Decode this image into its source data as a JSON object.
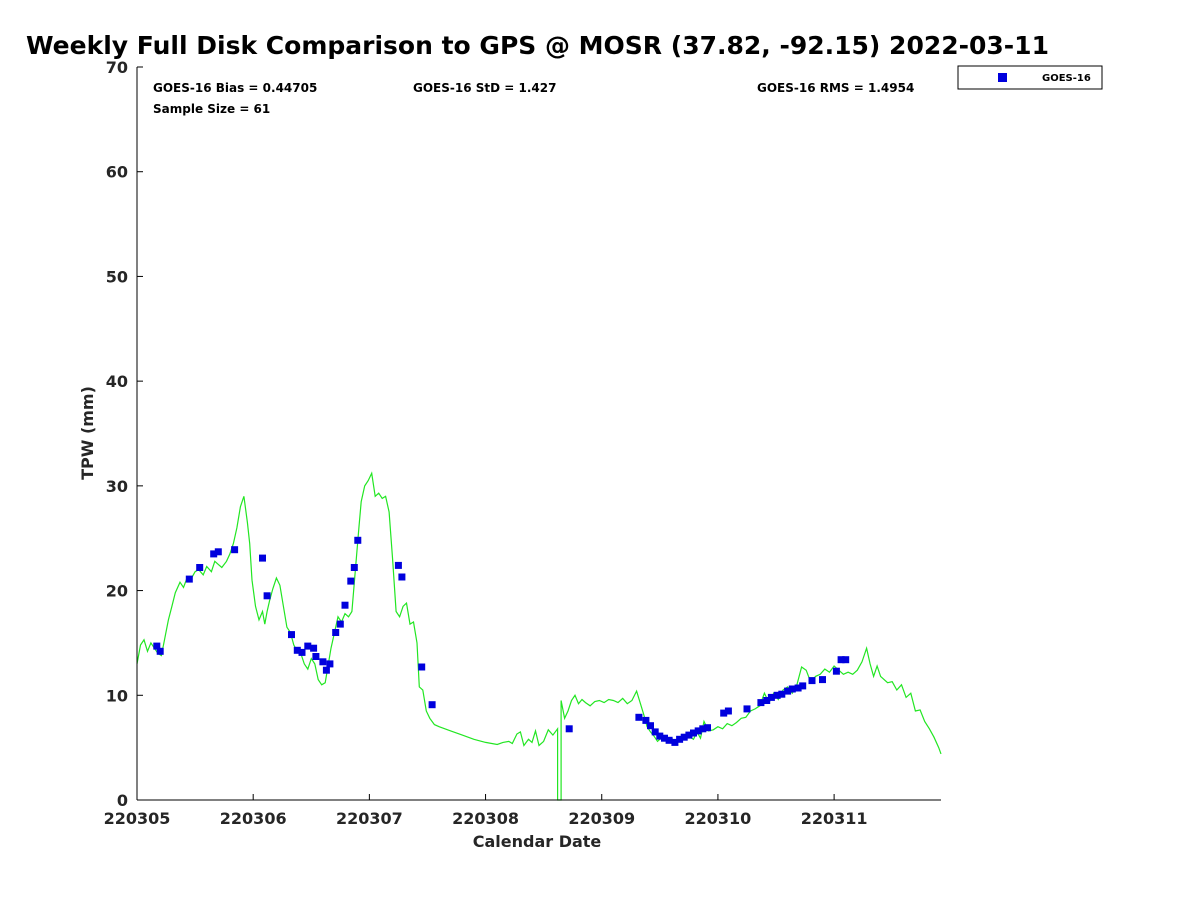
{
  "chart_data": {
    "type": "line",
    "title": "Weekly Full Disk Comparison to GPS @ MOSR (37.82, -92.15) 2022-03-11",
    "xlabel": "Calendar Date",
    "ylabel": "TPW (mm)",
    "xlim": [
      220305,
      220311.92
    ],
    "ylim": [
      0,
      70
    ],
    "x_ticks": [
      {
        "value": 220305,
        "label": "220305"
      },
      {
        "value": 220306,
        "label": "220306"
      },
      {
        "value": 220307,
        "label": "220307"
      },
      {
        "value": 220308,
        "label": "220308"
      },
      {
        "value": 220309,
        "label": "220309"
      },
      {
        "value": 220310,
        "label": "220310"
      },
      {
        "value": 220311,
        "label": "220311"
      }
    ],
    "y_ticks": [
      {
        "value": 0,
        "label": "0"
      },
      {
        "value": 10,
        "label": "10"
      },
      {
        "value": 20,
        "label": "20"
      },
      {
        "value": 30,
        "label": "30"
      },
      {
        "value": 40,
        "label": "40"
      },
      {
        "value": 50,
        "label": "50"
      },
      {
        "value": 60,
        "label": "60"
      },
      {
        "value": 70,
        "label": "70"
      }
    ],
    "grid": false,
    "legend_position": "outside-top-right",
    "stats": {
      "bias": "GOES-16 Bias = 0.44705",
      "std": "GOES-16 StD = 1.427",
      "rms": "GOES-16 RMS = 1.4954",
      "sample": "Sample Size = 61"
    },
    "series": [
      {
        "kind": "line",
        "color": "#22e622",
        "x": [
          220305.0,
          220305.03,
          220305.06,
          220305.09,
          220305.12,
          220305.15,
          220305.18,
          220305.21,
          220305.24,
          220305.27,
          220305.3,
          220305.33,
          220305.37,
          220305.4,
          220305.43,
          220305.46,
          220305.5,
          220305.53,
          220305.57,
          220305.6,
          220305.64,
          220305.67,
          220305.7,
          220305.73,
          220305.77,
          220305.8,
          220305.83,
          220305.86,
          220305.89,
          220305.92,
          220305.95,
          220305.97,
          220305.99,
          220306.02,
          220306.05,
          220306.08,
          220306.1,
          220306.12,
          220306.14,
          220306.17,
          220306.2,
          220306.23,
          220306.26,
          220306.29,
          220306.32,
          220306.35,
          220306.38,
          220306.41,
          220306.44,
          220306.47,
          220306.5,
          220306.53,
          220306.56,
          220306.59,
          220306.62,
          220306.64,
          220306.67,
          220306.7,
          220306.73,
          220306.76,
          220306.79,
          220306.82,
          220306.85,
          220306.88,
          220306.91,
          220306.93,
          220306.96,
          220306.99,
          220307.02,
          220307.05,
          220307.08,
          220307.11,
          220307.14,
          220307.17,
          220307.2,
          220307.23,
          220307.26,
          220307.29,
          220307.32,
          220307.35,
          220307.38,
          220307.41,
          220307.43,
          220307.46,
          220307.49,
          220307.52,
          220307.56,
          220307.6,
          220307.7,
          220307.8,
          220307.9,
          220308.0,
          220308.1,
          220308.15,
          220308.2,
          220308.23,
          220308.27,
          220308.3,
          220308.33,
          220308.37,
          220308.4,
          220308.43,
          220308.46,
          220308.5,
          220308.54,
          220308.58,
          220308.62,
          220308.62,
          220308.65,
          220308.65,
          220308.68,
          220308.71,
          220308.74,
          220308.77,
          220308.8,
          220308.83,
          220308.86,
          220308.9,
          220308.94,
          220308.98,
          220309.02,
          220309.06,
          220309.1,
          220309.14,
          220309.18,
          220309.22,
          220309.26,
          220309.3,
          220309.33,
          220309.36,
          220309.39,
          220309.42,
          220309.45,
          220309.48,
          220309.52,
          220309.56,
          220309.6,
          220309.64,
          220309.67,
          220309.7,
          220309.73,
          220309.76,
          220309.79,
          220309.82,
          220309.85,
          220309.88,
          220309.92,
          220309.96,
          220310.0,
          220310.04,
          220310.08,
          220310.12,
          220310.16,
          220310.2,
          220310.24,
          220310.28,
          220310.32,
          220310.36,
          220310.4,
          220310.44,
          220310.48,
          220310.52,
          220310.56,
          220310.6,
          220310.64,
          220310.68,
          220310.72,
          220310.76,
          220310.8,
          220310.84,
          220310.88,
          220310.92,
          220310.96,
          220311.0,
          220311.04,
          220311.08,
          220311.12,
          220311.16,
          220311.2,
          220311.24,
          220311.28,
          220311.31,
          220311.34,
          220311.37,
          220311.4,
          220311.43,
          220311.46,
          220311.5,
          220311.54,
          220311.58,
          220311.62,
          220311.66,
          220311.7,
          220311.74,
          220311.78,
          220311.82,
          220311.86,
          220311.9,
          220311.92
        ],
        "y": [
          13.0,
          14.8,
          15.3,
          14.2,
          15.0,
          14.5,
          14.0,
          13.8,
          15.5,
          17.2,
          18.5,
          19.8,
          20.8,
          20.3,
          21.2,
          21.0,
          21.8,
          22.0,
          21.5,
          22.3,
          21.8,
          22.8,
          22.5,
          22.2,
          22.8,
          23.5,
          24.5,
          26.0,
          28.0,
          29.0,
          26.5,
          24.5,
          21.0,
          18.5,
          17.2,
          18.0,
          16.8,
          18.0,
          19.0,
          20.2,
          21.2,
          20.5,
          18.5,
          16.5,
          16.0,
          14.8,
          14.2,
          14.0,
          13.0,
          12.5,
          13.5,
          13.0,
          11.5,
          11.0,
          11.2,
          12.5,
          14.5,
          16.0,
          17.5,
          17.0,
          17.8,
          17.5,
          18.0,
          22.0,
          26.0,
          28.5,
          30.0,
          30.5,
          31.2,
          29.0,
          29.3,
          28.8,
          29.0,
          27.5,
          23.0,
          18.0,
          17.5,
          18.5,
          18.8,
          16.8,
          17.0,
          15.0,
          10.8,
          10.5,
          8.5,
          7.8,
          7.2,
          7.0,
          6.6,
          6.2,
          5.8,
          5.5,
          5.3,
          5.5,
          5.6,
          5.4,
          6.3,
          6.5,
          5.2,
          5.8,
          5.5,
          6.6,
          5.2,
          5.6,
          6.7,
          6.2,
          6.8,
          0.0,
          0.0,
          9.5,
          7.8,
          8.5,
          9.5,
          10.0,
          9.2,
          9.6,
          9.3,
          9.0,
          9.4,
          9.5,
          9.3,
          9.6,
          9.5,
          9.3,
          9.7,
          9.2,
          9.5,
          10.4,
          9.3,
          8.2,
          7.0,
          6.5,
          6.1,
          5.6,
          6.0,
          5.7,
          5.9,
          5.5,
          6.0,
          5.8,
          6.2,
          6.0,
          5.8,
          6.5,
          5.9,
          7.5,
          6.6,
          6.7,
          7.0,
          6.8,
          7.3,
          7.1,
          7.4,
          7.8,
          7.9,
          8.5,
          8.7,
          9.0,
          10.2,
          9.3,
          10.2,
          9.6,
          10.5,
          10.8,
          10.2,
          11.0,
          12.7,
          12.4,
          11.2,
          11.8,
          12.0,
          12.5,
          12.2,
          12.8,
          12.4,
          12.0,
          12.2,
          12.0,
          12.4,
          13.2,
          14.5,
          13.0,
          11.8,
          12.8,
          11.8,
          11.5,
          11.2,
          11.3,
          10.5,
          11.0,
          9.8,
          10.2,
          8.5,
          8.6,
          7.5,
          6.8,
          6.0,
          5.0,
          4.4
        ]
      },
      {
        "kind": "scatter",
        "name": "GOES-16",
        "color": "#0000dd",
        "x": [
          220305.17,
          220305.2,
          220305.45,
          220305.54,
          220305.66,
          220305.7,
          220305.84,
          220306.08,
          220306.12,
          220306.33,
          220306.38,
          220306.42,
          220306.47,
          220306.52,
          220306.54,
          220306.6,
          220306.63,
          220306.66,
          220306.71,
          220306.75,
          220306.79,
          220306.84,
          220306.87,
          220306.9,
          220307.25,
          220307.28,
          220307.45,
          220307.54,
          220308.72,
          220309.32,
          220309.38,
          220309.42,
          220309.46,
          220309.5,
          220309.54,
          220309.58,
          220309.63,
          220309.67,
          220309.71,
          220309.75,
          220309.79,
          220309.83,
          220309.87,
          220309.91,
          220310.05,
          220310.09,
          220310.25,
          220310.37,
          220310.42,
          220310.46,
          220310.51,
          220310.55,
          220310.6,
          220310.64,
          220310.69,
          220310.73,
          220310.81,
          220310.9,
          220311.02,
          220311.06,
          220311.1
        ],
        "y": [
          14.7,
          14.2,
          21.1,
          22.2,
          23.5,
          23.7,
          23.9,
          23.1,
          19.5,
          15.8,
          14.3,
          14.1,
          14.7,
          14.5,
          13.7,
          13.2,
          12.4,
          13.0,
          16.0,
          16.8,
          18.6,
          20.9,
          22.2,
          24.8,
          22.4,
          21.3,
          12.7,
          9.1,
          6.8,
          7.9,
          7.6,
          7.1,
          6.5,
          6.1,
          5.9,
          5.7,
          5.5,
          5.8,
          6.0,
          6.2,
          6.4,
          6.6,
          6.8,
          6.9,
          8.3,
          8.5,
          8.7,
          9.3,
          9.5,
          9.8,
          10.0,
          10.1,
          10.4,
          10.6,
          10.7,
          10.9,
          11.4,
          11.5,
          12.3,
          13.4,
          13.4
        ]
      }
    ]
  }
}
